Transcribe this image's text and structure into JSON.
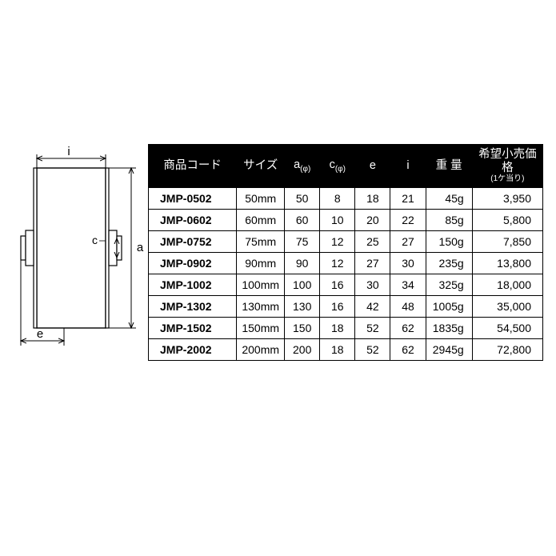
{
  "diagram": {
    "labels": {
      "i": "i",
      "a": "a",
      "e": "e",
      "c": "c"
    }
  },
  "table": {
    "headers": {
      "code": "商品コード",
      "size": "サイズ",
      "a": "a",
      "a_sub": "(φ)",
      "c": "c",
      "c_sub": "(φ)",
      "e": "e",
      "i": "i",
      "weight": "重 量",
      "price": "希望小売価格",
      "price_sub": "(1ケ当り)"
    },
    "rows": [
      {
        "code": "JMP-0502",
        "size": "50mm",
        "a": "50",
        "c": "8",
        "e": "18",
        "i": "21",
        "weight": "45g",
        "price": "3,950"
      },
      {
        "code": "JMP-0602",
        "size": "60mm",
        "a": "60",
        "c": "10",
        "e": "20",
        "i": "22",
        "weight": "85g",
        "price": "5,800"
      },
      {
        "code": "JMP-0752",
        "size": "75mm",
        "a": "75",
        "c": "12",
        "e": "25",
        "i": "27",
        "weight": "150g",
        "price": "7,850"
      },
      {
        "code": "JMP-0902",
        "size": "90mm",
        "a": "90",
        "c": "12",
        "e": "27",
        "i": "30",
        "weight": "235g",
        "price": "13,800"
      },
      {
        "code": "JMP-1002",
        "size": "100mm",
        "a": "100",
        "c": "16",
        "e": "30",
        "i": "34",
        "weight": "325g",
        "price": "18,000"
      },
      {
        "code": "JMP-1302",
        "size": "130mm",
        "a": "130",
        "c": "16",
        "e": "42",
        "i": "48",
        "weight": "1005g",
        "price": "35,000"
      },
      {
        "code": "JMP-1502",
        "size": "150mm",
        "a": "150",
        "c": "18",
        "e": "52",
        "i": "62",
        "weight": "1835g",
        "price": "54,500"
      },
      {
        "code": "JMP-2002",
        "size": "200mm",
        "a": "200",
        "c": "18",
        "e": "52",
        "i": "62",
        "weight": "2945g",
        "price": "72,800"
      }
    ]
  }
}
